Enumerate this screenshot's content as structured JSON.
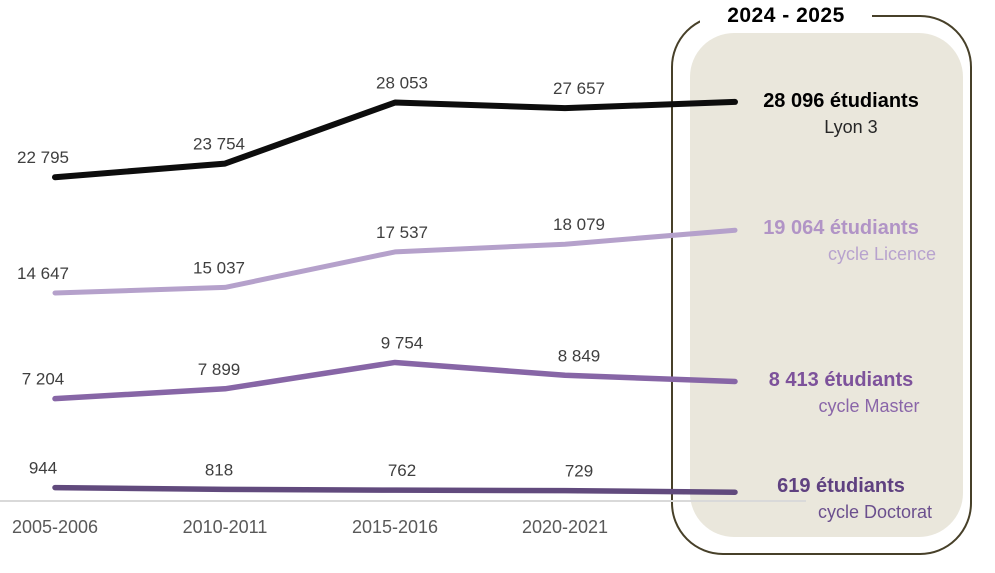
{
  "panel": {
    "title": "2024 - 2025",
    "fill_color": "#eae7dc",
    "border_color": "#474029"
  },
  "chart_data": {
    "type": "line",
    "title": "",
    "xlabel": "",
    "ylabel": "",
    "categories": [
      "2005-2006",
      "2010-2011",
      "2015-2016",
      "2020-2021",
      "2024-2025"
    ],
    "axis_labels": [
      "2005-2006",
      "2010-2011",
      "2015-2016",
      "2020-2021"
    ],
    "ylim": [
      0,
      35000
    ],
    "grid": false,
    "legend_position": "right-panel",
    "point_label_color": "#3f3f3f",
    "axis_label_color": "#595959",
    "axis_line_color": "#d9d9d9",
    "series": [
      {
        "name": "Lyon 3",
        "values": [
          22795,
          23754,
          28053,
          27657,
          28096
        ],
        "point_labels": [
          "22 795",
          "23 754",
          "28 053",
          "27 657"
        ],
        "line_color": "#0d0d0d",
        "end_label": "28 096 étudiants",
        "end_label_color": "#000000",
        "sub_label": "Lyon 3",
        "sub_label_color": "#262626"
      },
      {
        "name": "cycle Licence",
        "values": [
          14647,
          15037,
          17537,
          18079,
          19064
        ],
        "point_labels": [
          "14 647",
          "15 037",
          "17 537",
          "18 079"
        ],
        "line_color": "#b5a1cb",
        "end_label": "19 064 étudiants",
        "end_label_color": "#b194c6",
        "sub_label": "cycle Licence",
        "sub_label_color": "#b8a3ce"
      },
      {
        "name": "cycle Master",
        "values": [
          7204,
          7899,
          9754,
          8849,
          8413
        ],
        "point_labels": [
          "7 204",
          "7 899",
          "9 754",
          "8 849"
        ],
        "line_color": "#8766a6",
        "end_label": "8 413 étudiants",
        "end_label_color": "#7d529b",
        "sub_label": "cycle Master",
        "sub_label_color": "#8a66a9"
      },
      {
        "name": "cycle Doctorat",
        "values": [
          944,
          818,
          762,
          729,
          619
        ],
        "point_labels": [
          "944",
          "818",
          "762",
          "729"
        ],
        "line_color": "#614a7d",
        "end_label": "619 étudiants",
        "end_label_color": "#5f4180",
        "sub_label": "cycle Doctorat",
        "sub_label_color": "#6b4f8e"
      }
    ]
  }
}
